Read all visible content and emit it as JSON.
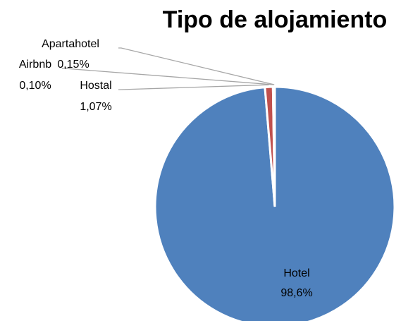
{
  "chart_data": {
    "type": "pie",
    "title": "Tipo de alojamiento",
    "categories": [
      "Hotel",
      "Hostal",
      "Airbnb",
      "Apartahotel"
    ],
    "values": [
      98.6,
      1.07,
      0.1,
      0.15
    ],
    "value_labels": [
      "98,6%",
      "1,07%",
      "0,10%",
      "0,15%"
    ],
    "colors": [
      "#4f81bd",
      "#c0504d",
      "#9bbb59",
      "#8064a2"
    ]
  }
}
